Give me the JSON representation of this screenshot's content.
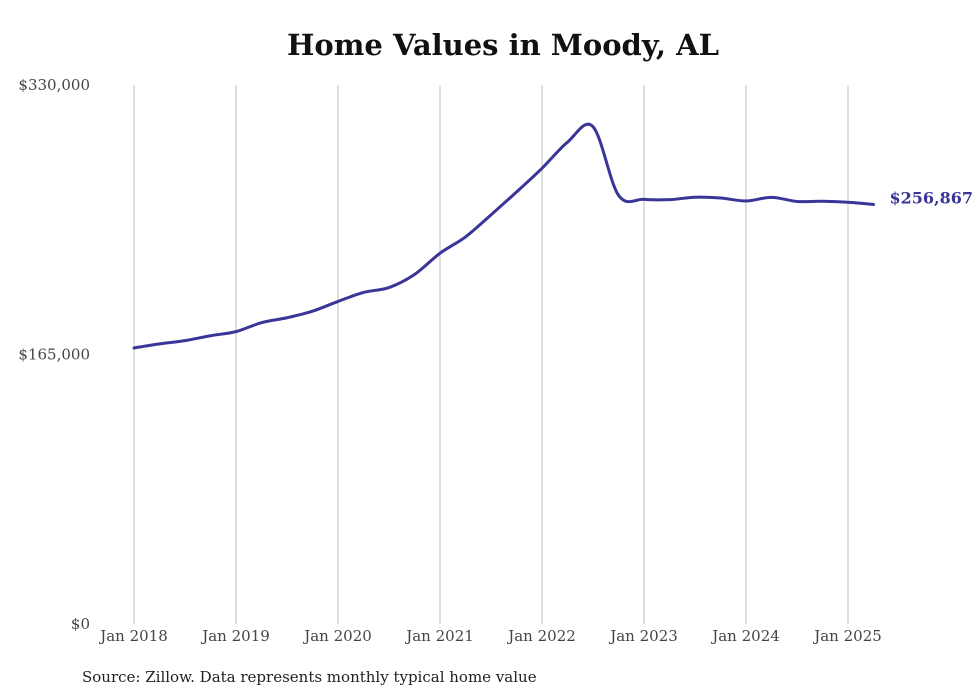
{
  "chart_data": {
    "type": "line",
    "title": "Home Values in Moody, AL",
    "xlabel": "",
    "ylabel": "",
    "ylim": [
      0,
      330000
    ],
    "y_ticks": [
      0,
      165000,
      330000
    ],
    "y_tick_labels": [
      "$0",
      "$165,000",
      "$330,000"
    ],
    "x_ticks": [
      "2018-01",
      "2019-01",
      "2020-01",
      "2021-01",
      "2022-01",
      "2023-01",
      "2024-01",
      "2025-01"
    ],
    "x_tick_labels": [
      "Jan 2018",
      "Jan 2019",
      "Jan 2020",
      "Jan 2021",
      "Jan 2022",
      "Jan 2023",
      "Jan 2024",
      "Jan 2025"
    ],
    "grid": "vertical",
    "line_color": "#3a3598",
    "end_label": "$256,867",
    "series": [
      {
        "x": [
          "2018-01",
          "2018-04",
          "2018-07",
          "2018-10",
          "2019-01",
          "2019-04",
          "2019-07",
          "2019-10",
          "2020-01",
          "2020-04",
          "2020-07",
          "2020-10",
          "2021-01",
          "2021-04",
          "2021-07",
          "2021-10",
          "2022-01",
          "2022-04",
          "2022-07",
          "2022-10",
          "2023-01",
          "2023-04",
          "2023-07",
          "2023-10",
          "2024-01",
          "2024-04",
          "2024-07",
          "2024-10",
          "2025-01",
          "2025-04"
        ],
        "values": [
          169000,
          171500,
          173500,
          176500,
          179000,
          184500,
          187500,
          191500,
          197500,
          203000,
          206000,
          214000,
          227000,
          237000,
          250500,
          264500,
          279000,
          295000,
          304500,
          262500,
          260000,
          259800,
          261300,
          260800,
          259000,
          261200,
          258700,
          258800,
          258200,
          256867
        ]
      }
    ],
    "source": "Source: Zillow. Data represents monthly typical home value"
  }
}
